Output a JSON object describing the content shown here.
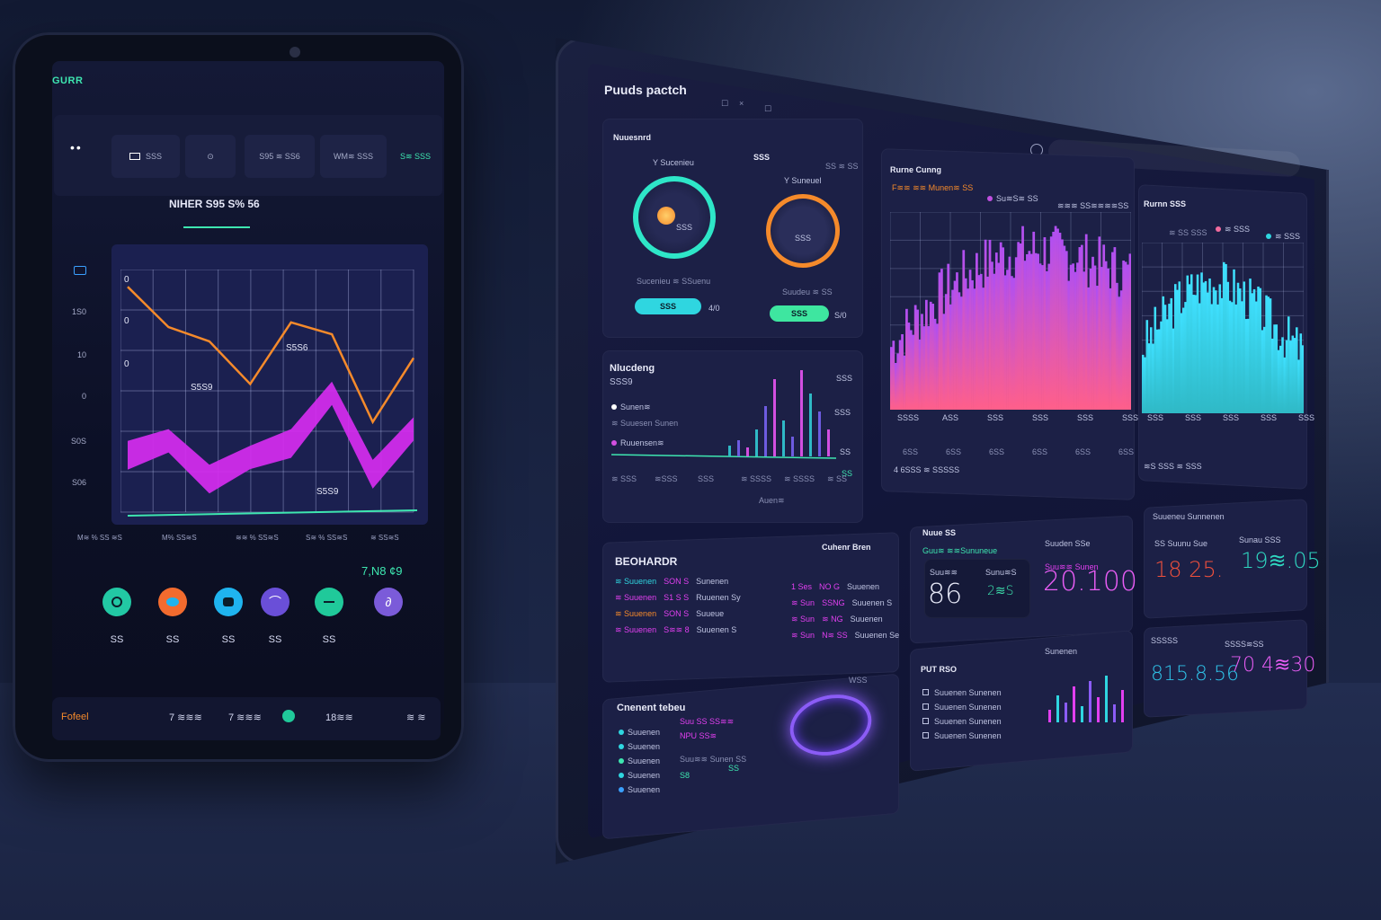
{
  "tablet": {
    "brand": "GURR",
    "nav": {
      "menu_dots": "••",
      "tabs": [
        "SSS",
        "⊙",
        "S95 ≋ SS6",
        "WM≋ SSS"
      ],
      "right_label": "S≋ SSS"
    },
    "heading": "NIHER S95 S% 56",
    "chart_y_labels": [
      "0",
      "1S0",
      "10",
      "0",
      "S0S",
      "S06"
    ],
    "chart_inner_labels": [
      "S5S6",
      "S5S9",
      "S5S9",
      "0",
      "0",
      "0"
    ],
    "chart_x_labels": [
      "M≋ % SS ≋S",
      "M% SS≋S",
      "≋≋ % SS≋S",
      "S≋ % SS≋S",
      "≋ SS≋S"
    ],
    "stat": "7,N8 ¢9",
    "circles": [
      {
        "label": "SS",
        "color": "#22c8a4"
      },
      {
        "label": "SS",
        "color": "#f26b2e"
      },
      {
        "label": "SS",
        "color": "#1fb4ef"
      },
      {
        "label": "SS",
        "color": "#6a4fd8"
      },
      {
        "label": "SS",
        "color": "#20c99a"
      },
      {
        "label": "",
        "color": "#7b5bd9"
      }
    ],
    "footer": {
      "brand": "Fofeel",
      "items": [
        "7 ≋≋≋",
        "7 ≋≋≋",
        "18≋≋",
        "≋ ≋"
      ]
    }
  },
  "chart_data": [
    {
      "type": "line",
      "series": [
        {
          "values": [
            95,
            78,
            72,
            54,
            80,
            75,
            38,
            65
          ]
        },
        {
          "values": [
            30,
            35,
            20,
            28,
            35,
            55,
            22,
            40
          ]
        }
      ],
      "ylim": [
        0,
        100
      ]
    }
  ],
  "monitor": {
    "title": "Puuds pactch",
    "window_buttons": [
      "☐",
      "×",
      "☐"
    ],
    "gauges": {
      "title": "Nuuesnrd",
      "left": {
        "label": "Y Sucenieu",
        "inner": "SSS",
        "caption": "Sucenieu ≋ SSuenu",
        "pill": "SSS",
        "pill_value": "4/0"
      },
      "right": {
        "label": "SSS",
        "sub": "Y Suneuel",
        "inner": "SSS",
        "caption": "Suudeu ≋ SS",
        "pill": "SSS",
        "pill_value": "S/0",
        "corner": "SS ≋ SS"
      }
    },
    "rc_chart": {
      "title": "Rurne Cunng",
      "subtitle": "F≋≋ ≋≋ Munen≋ SS",
      "legend": [
        "Su≋S≋ SS",
        "≋≋≋ SS≋≋≋≋SS"
      ],
      "x_labels": [
        "SSSS",
        "ASS",
        "SSS",
        "SSS",
        "SSS",
        "SSS"
      ],
      "y_labels": [
        "6SS",
        "6SS",
        "6SS",
        "6SS",
        "6SS",
        "6SS"
      ],
      "footer": "4 6SSS ≋ SSSSS"
    },
    "rs_chart": {
      "title": "Rurnn SSS",
      "sub": "≋ SS SSS",
      "legend": [
        "≋ SSS",
        "≋ SSS"
      ],
      "x_labels": [
        "SSS",
        "SSS",
        "SSS",
        "SSS",
        "SSS"
      ],
      "footer": "≋S SSS ≋ SSS"
    },
    "bars_panel": {
      "title": "Nlucdeng",
      "sub": "SSS9",
      "top_right": "SSS",
      "legend": [
        "Sunen≋",
        "≋ Suuesen Sunen",
        "Ruuensen≋"
      ],
      "right_labels": [
        "SSS",
        "SS",
        "SS"
      ],
      "bottom": [
        "≋ SSS",
        "≋SSS",
        "SSS",
        "≋ SSSS",
        "≋ SSSS",
        "≋ SS"
      ],
      "foot": "Auen≋"
    },
    "list_panel": {
      "title": "BEOHARDR",
      "right_title": "Cuhenr Bren",
      "left_rows": [
        {
          "a": "≋ Suuenen",
          "b": "SON S",
          "c": "Sunenen"
        },
        {
          "a": "≋ Suuenen",
          "b": "S1 S S",
          "c": "Ruuenen Sy"
        },
        {
          "a": "≋ Suuenen",
          "b": "SON S",
          "c": "Suueue"
        },
        {
          "a": "≋ Suuenen",
          "b": "S≋≋ 8",
          "c": "Suuenen S"
        }
      ],
      "right_rows": [
        {
          "a": "1 Ses",
          "b": "NO G",
          "c": "Suuenen"
        },
        {
          "a": "≋ Sun",
          "b": "SSNG",
          "c": "Suuenen S"
        },
        {
          "a": "≋ Sun",
          "b": "≋ NG",
          "c": "Suuenen"
        },
        {
          "a": "≋ Sun",
          "b": "N≋ SS",
          "c": "Suuenen Se"
        }
      ]
    },
    "kpi_a": {
      "title": "Nuue SS",
      "sub": "Guu≋ ≋≋Sununeue",
      "l1": "Suu≋≋",
      "v1": "86",
      "l2": "Sunu≋S",
      "v2": "2≋S",
      "r_label": "Suuden SSe",
      "r_sub": "Suu≋≋ Sunen",
      "v3": "20.100"
    },
    "kpi_b": {
      "title": "Suueneu Sunnenen",
      "l1": "SS Suunu Sue",
      "v1": "18 25.",
      "l2": "Sunau SSS",
      "v2": "19≋.05"
    },
    "kpi_c": {
      "t1": "SSSSS",
      "t2": "SSSS≋SS",
      "v1": "815.8.56",
      "v2": "70 4≋30"
    },
    "bottom_left": {
      "title": "Cnenent tebeu",
      "rows": [
        "Suuenen",
        "Suuenen",
        "Suuenen",
        "Suuenen",
        "Suuenen"
      ],
      "mid": [
        "Suu SS SS≋≋",
        "NPU SS≋",
        "Suu≋≋ Sunen SS"
      ],
      "mid_values": [
        "S8",
        "SS"
      ],
      "ring_label": "WSS"
    },
    "bottom_mid": {
      "title": "PUT RSO",
      "rows": [
        "Suuenen Sunenen",
        "Suuenen Sunenen",
        "Suuenen Sunenen",
        "Suuenen Sunenen"
      ],
      "bars_title": "Sunenen"
    }
  },
  "colors": {
    "accent_teal": "#3ee6b0",
    "accent_orange": "#f58a2b",
    "accent_magenta": "#e23ff0",
    "accent_cyan": "#2fd6e0",
    "bg": "#121a33"
  }
}
